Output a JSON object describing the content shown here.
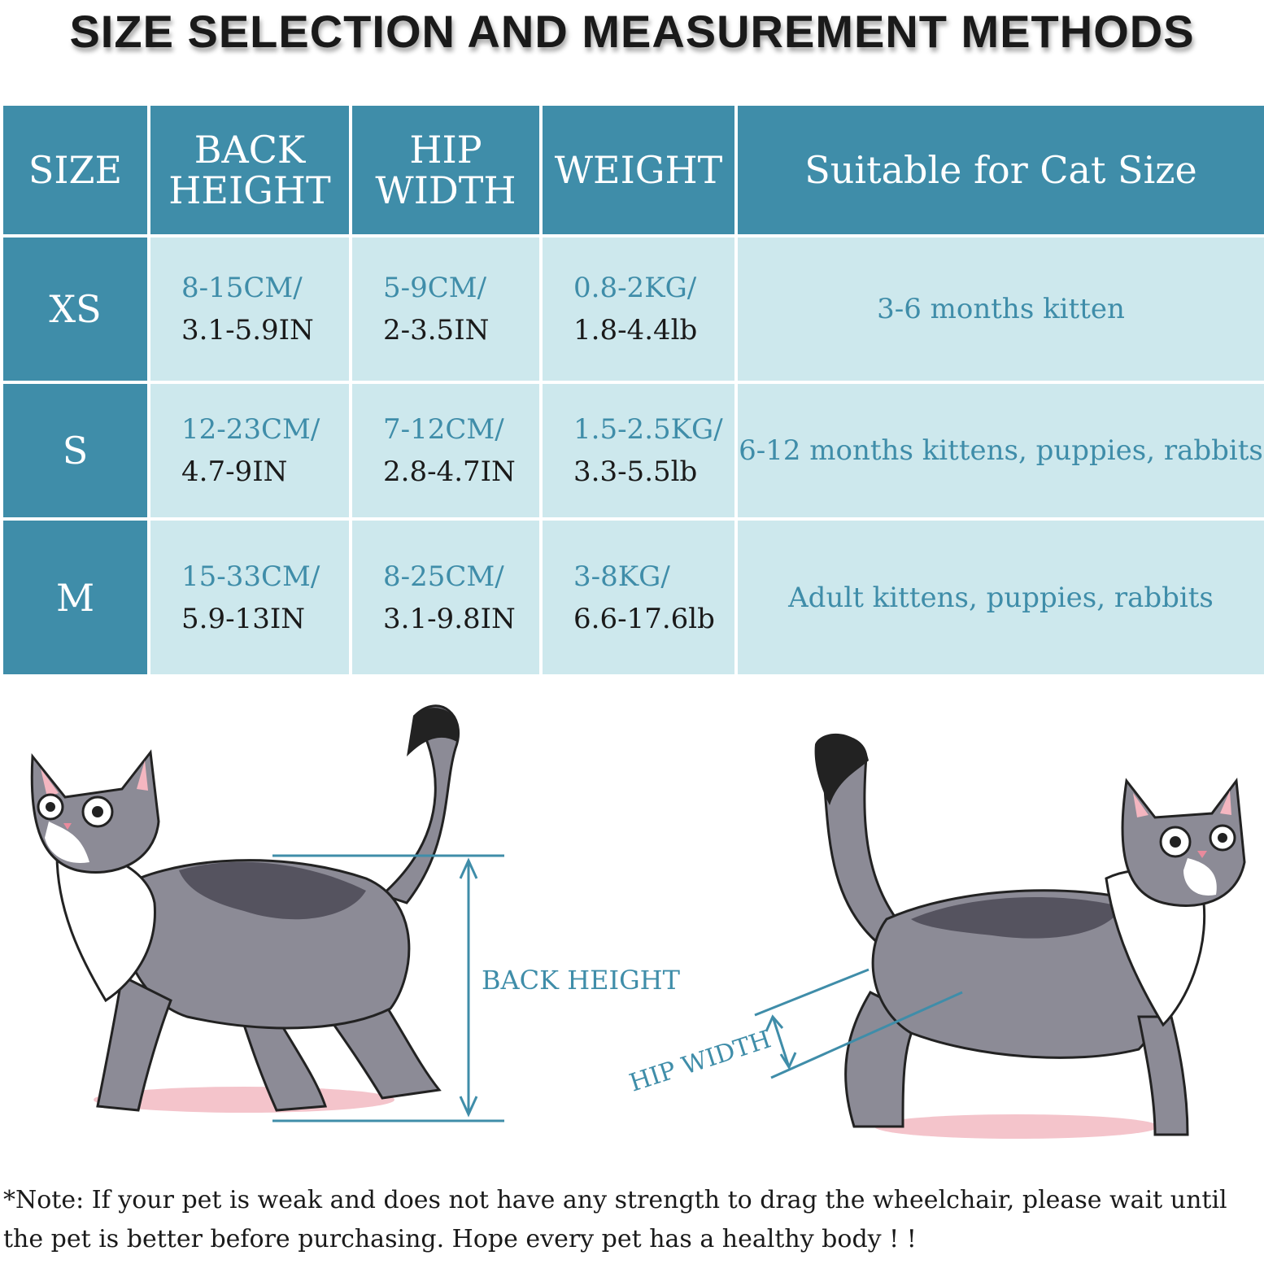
{
  "title": "SIZE SELECTION AND MEASUREMENT METHODS",
  "table": {
    "headers": {
      "size": "SIZE",
      "back_height_1": "BACK",
      "back_height_2": "HEIGHT",
      "hip_width_1": "HIP",
      "hip_width_2": "WIDTH",
      "weight": "WEIGHT",
      "suitable": "Suitable for Cat Size"
    },
    "rows": [
      {
        "size": "XS",
        "back_cm": "8-15CM/",
        "back_in": "3.1-5.9IN",
        "hip_cm": "5-9CM/",
        "hip_in": "2-3.5IN",
        "weight_kg": "0.8-2KG/",
        "weight_lb": "1.8-4.4lb",
        "suitable": "3-6 months kitten"
      },
      {
        "size": "S",
        "back_cm": "12-23CM/",
        "back_in": "4.7-9IN",
        "hip_cm": "7-12CM/",
        "hip_in": "2.8-4.7IN",
        "weight_kg": "1.5-2.5KG/",
        "weight_lb": "3.3-5.5lb",
        "suitable": "6-12 months kittens, puppies, rabbits"
      },
      {
        "size": "M",
        "back_cm": "15-33CM/",
        "back_in": "5.9-13IN",
        "hip_cm": "8-25CM/",
        "hip_in": "3.1-9.8IN",
        "weight_kg": "3-8KG/",
        "weight_lb": "6.6-17.6lb",
        "suitable": "Adult kittens, puppies, rabbits"
      }
    ]
  },
  "diagram": {
    "back_height_label": "BACK HEIGHT",
    "hip_width_label": "HIP WIDTH"
  },
  "colors": {
    "accent": "#3f8da9",
    "cell_light": "#cde8ed",
    "cat_gray": "#8c8b96",
    "cat_dark": "#55535f"
  },
  "note": "*Note: If your pet is weak and does not have any strength to drag the wheelchair, please wait until the pet is better before purchasing. Hope every pet has a healthy body ! !"
}
